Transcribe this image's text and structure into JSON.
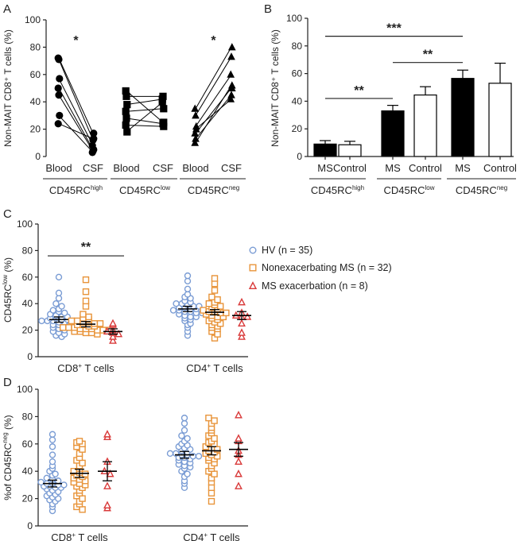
{
  "chart_data": [
    {
      "panel": "A",
      "type": "scatter",
      "subtype": "paired-dot",
      "ylabel": "Non-MAIT CD8⁺ T cells (%)",
      "ylim": [
        0,
        100
      ],
      "yticks": [
        0,
        20,
        40,
        60,
        80,
        100
      ],
      "groups": [
        {
          "name": "CD45RC",
          "sup": "high",
          "marker": "circle",
          "x_labels": [
            "Blood",
            "CSF"
          ],
          "pairs": [
            [
              72,
              17
            ],
            [
              71,
              12
            ],
            [
              57,
              8
            ],
            [
              50,
              5
            ],
            [
              45,
              4
            ],
            [
              30,
              3
            ],
            [
              24,
              13
            ]
          ]
        },
        {
          "name": "CD45RC",
          "sup": "low",
          "marker": "square",
          "x_labels": [
            "Blood",
            "CSF"
          ],
          "pairs": [
            [
              48,
              25
            ],
            [
              44,
              44
            ],
            [
              38,
              42
            ],
            [
              33,
              35
            ],
            [
              28,
              24
            ],
            [
              18,
              40
            ],
            [
              23,
              22
            ]
          ]
        },
        {
          "name": "CD45RC",
          "sup": "neg",
          "marker": "triangle",
          "x_labels": [
            "Blood",
            "CSF"
          ],
          "pairs": [
            [
              35,
              80
            ],
            [
              30,
              73
            ],
            [
              22,
              60
            ],
            [
              17,
              50
            ],
            [
              13,
              45
            ],
            [
              20,
              42
            ],
            [
              10,
              52
            ]
          ]
        }
      ],
      "annotations": [
        {
          "text": "*",
          "group": 0
        },
        {
          "text": "*",
          "group": 2
        }
      ]
    },
    {
      "panel": "B",
      "type": "bar",
      "ylabel": "Non-MAIT CD8⁺ T cells (%)",
      "ylim": [
        0,
        100
      ],
      "yticks": [
        0,
        20,
        40,
        60,
        80,
        100
      ],
      "groups": [
        {
          "name": "CD45RC",
          "sup": "high",
          "bars": [
            {
              "label": "MS",
              "value": 9,
              "err": 2.5,
              "fill": "black"
            },
            {
              "label": "Control",
              "value": 8.5,
              "err": 2.5,
              "fill": "white"
            }
          ]
        },
        {
          "name": "CD45RC",
          "sup": "low",
          "bars": [
            {
              "label": "MS",
              "value": 33,
              "err": 4,
              "fill": "black"
            },
            {
              "label": "Control",
              "value": 44.5,
              "err": 6,
              "fill": "white"
            }
          ]
        },
        {
          "name": "CD45RC",
          "sup": "neg",
          "bars": [
            {
              "label": "MS",
              "value": 56.5,
              "err": 6,
              "fill": "black"
            },
            {
              "label": "Control",
              "value": 53,
              "err": 14.5,
              "fill": "white"
            }
          ]
        }
      ],
      "significance": [
        {
          "text": "***",
          "from_group": 0,
          "to_group": 2,
          "level": 87
        },
        {
          "text": "**",
          "from_group": 1,
          "to_group": 2,
          "level": 68
        },
        {
          "text": "**",
          "from_group": 0,
          "to_group": 1,
          "level": 42
        }
      ]
    },
    {
      "panel": "C",
      "type": "scatter",
      "subtype": "dot-plot",
      "ylabel": "CD45RC",
      "ylabel_sup": "low",
      "ylabel_suffix": " (%)",
      "ylim": [
        0,
        100
      ],
      "yticks": [
        0,
        20,
        40,
        60,
        80,
        100
      ],
      "categories": [
        {
          "name": "CD8",
          "sup": "+",
          "suffix": " T cells"
        },
        {
          "name": "CD4",
          "sup": "+",
          "suffix": " T cells"
        }
      ],
      "series": [
        {
          "name": "HV (n = 35)",
          "color": "#7a9cd4",
          "marker": "circle",
          "values": [
            [
              60,
              48,
              44,
              40,
              38,
              36,
              35,
              34,
              33,
              32,
              31,
              30,
              30,
              29,
              29,
              28,
              28,
              27,
              27,
              27,
              26,
              26,
              25,
              25,
              24,
              24,
              23,
              22,
              21,
              20,
              19,
              18,
              17,
              16,
              15
            ],
            [
              61,
              57,
              51,
              47,
              45,
              44,
              42,
              41,
              40,
              40,
              39,
              38,
              38,
              37,
              37,
              36,
              36,
              35,
              35,
              34,
              34,
              33,
              33,
              32,
              31,
              30,
              30,
              29,
              28,
              27,
              25,
              24,
              22,
              19,
              16
            ]
          ],
          "mean": [
            28,
            36
          ],
          "sem": [
            2,
            2
          ]
        },
        {
          "name": "Nonexacerbating MS (n = 32)",
          "color": "#e8943a",
          "marker": "square",
          "values": [
            [
              58,
              49,
              42,
              38,
              32,
              30,
              29,
              28,
              27,
              27,
              26,
              26,
              25,
              25,
              24,
              24,
              23,
              23,
              22,
              22,
              22,
              21,
              21,
              21,
              20,
              20,
              20,
              19,
              19,
              18,
              18,
              17
            ],
            [
              59,
              55,
              50,
              45,
              43,
              41,
              40,
              39,
              38,
              37,
              36,
              35,
              34,
              34,
              33,
              33,
              32,
              31,
              30,
              30,
              29,
              28,
              27,
              26,
              25,
              24,
              23,
              22,
              21,
              19,
              17,
              14
            ]
          ],
          "mean": [
            24.5,
            33.5
          ],
          "sem": [
            2,
            2
          ]
        },
        {
          "name": "MS exacerbation (n = 8)",
          "color": "#d93a3a",
          "marker": "triangle",
          "values": [
            [
              25,
              24,
              20,
              19,
              18,
              17,
              15,
              12
            ],
            [
              41,
              33,
              31,
              30,
              30,
              25,
              18,
              15
            ]
          ],
          "mean": [
            19,
            31
          ],
          "sem": [
            2,
            3
          ]
        }
      ],
      "significance": [
        {
          "text": "**",
          "from_series": 0,
          "to_series": 2,
          "category": 0,
          "level": 76
        }
      ]
    },
    {
      "panel": "D",
      "type": "scatter",
      "subtype": "dot-plot",
      "ylabel": "%of CD45RC",
      "ylabel_sup": "neg",
      "ylabel_suffix": " (%)",
      "ylim": [
        0,
        100
      ],
      "yticks": [
        0,
        20,
        40,
        60,
        80,
        100
      ],
      "categories": [
        {
          "name": "CD8",
          "sup": "+",
          "suffix": " T cells"
        },
        {
          "name": "CD4",
          "sup": "+",
          "suffix": " T cells"
        }
      ],
      "series": [
        {
          "name": "HV (n = 35)",
          "color": "#7a9cd4",
          "marker": "circle",
          "values": [
            [
              67,
              63,
              58,
              52,
              47,
              44,
              42,
              40,
              38,
              37,
              35,
              34,
              33,
              32,
              31,
              31,
              30,
              30,
              29,
              29,
              28,
              28,
              27,
              26,
              25,
              24,
              23,
              22,
              21,
              20,
              19,
              18,
              16,
              14,
              11
            ],
            [
              79,
              75,
              70,
              66,
              64,
              62,
              60,
              59,
              58,
              57,
              56,
              55,
              54,
              53,
              53,
              52,
              52,
              51,
              51,
              50,
              50,
              49,
              48,
              47,
              46,
              45,
              44,
              43,
              42,
              40,
              38,
              36,
              33,
              31,
              28
            ]
          ],
          "mean": [
            31,
            52
          ],
          "sem": [
            2.5,
            2.5
          ]
        },
        {
          "name": "Nonexacerbating MS (n = 32)",
          "color": "#e8943a",
          "marker": "square",
          "values": [
            [
              62,
              61,
              60,
              58,
              56,
              53,
              50,
              48,
              46,
              44,
              42,
              40,
              39,
              38,
              37,
              36,
              35,
              34,
              33,
              32,
              31,
              30,
              29,
              28,
              26,
              24,
              22,
              20,
              18,
              16,
              14,
              12
            ],
            [
              79,
              77,
              75,
              72,
              70,
              68,
              66,
              64,
              62,
              61,
              60,
              58,
              57,
              56,
              55,
              54,
              53,
              52,
              51,
              50,
              49,
              48,
              46,
              44,
              42,
              40,
              38,
              35,
              32,
              28,
              24,
              18
            ]
          ],
          "mean": [
            38.5,
            55
          ],
          "sem": [
            3,
            3
          ]
        },
        {
          "name": "MS exacerbation (n = 8)",
          "color": "#d93a3a",
          "marker": "triangle",
          "values": [
            [
              67,
              65,
              47,
              40,
              38,
              29,
              15,
              13
            ],
            [
              81,
              64,
              62,
              55,
              52,
              47,
              38,
              29
            ]
          ],
          "mean": [
            40,
            56
          ],
          "sem": [
            7,
            5
          ]
        }
      ]
    }
  ]
}
